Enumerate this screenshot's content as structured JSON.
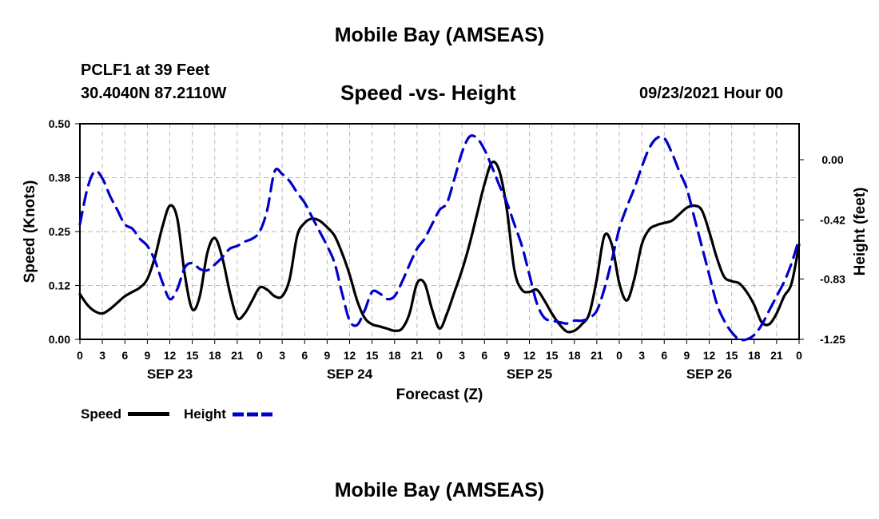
{
  "header": {
    "title": "Mobile Bay (AMSEAS)",
    "station": "PCLF1 at 39 Feet",
    "coordinates": "30.4040N  87.2110W",
    "subtitle": "Speed -vs- Height",
    "datetime": "09/23/2021 Hour 00"
  },
  "footer": {
    "title": "Mobile Bay (AMSEAS)"
  },
  "legend": {
    "speed_label": "Speed",
    "height_label": "Height"
  },
  "colors": {
    "speed": "#000000",
    "height": "#0000cc",
    "grid": "#bbbbbb"
  },
  "chart_data": {
    "type": "line",
    "title": "Speed -vs- Height",
    "xlabel": "Forecast (Z)",
    "ylabel": "Speed (Knots)",
    "y2label": "Height (feet)",
    "xlim": [
      0,
      96
    ],
    "ylim": [
      0,
      0.5
    ],
    "y2lim": [
      -1.25,
      0.25
    ],
    "x_tick_hours": [
      0,
      3,
      6,
      9,
      12,
      15,
      18,
      21,
      24,
      27,
      30,
      33,
      36,
      39,
      42,
      45,
      48,
      51,
      54,
      57,
      60,
      63,
      66,
      69,
      72,
      75,
      78,
      81,
      84,
      87,
      90,
      93,
      96
    ],
    "x_tick_labels": [
      "0",
      "3",
      "6",
      "9",
      "12",
      "15",
      "18",
      "21",
      "0",
      "3",
      "6",
      "9",
      "12",
      "15",
      "18",
      "21",
      "0",
      "3",
      "6",
      "9",
      "12",
      "15",
      "18",
      "21",
      "0",
      "3",
      "6",
      "9",
      "12",
      "15",
      "18",
      "21",
      "0"
    ],
    "date_labels": [
      {
        "hour": 12,
        "label": "SEP 23"
      },
      {
        "hour": 36,
        "label": "SEP 24"
      },
      {
        "hour": 60,
        "label": "SEP 25"
      },
      {
        "hour": 84,
        "label": "SEP 26"
      }
    ],
    "y_ticks": [
      0.0,
      0.125,
      0.25,
      0.375,
      0.5
    ],
    "y_tick_labels": [
      "0.00",
      "0.12",
      "0.25",
      "0.38",
      "0.50"
    ],
    "y2_ticks": [
      0.0,
      -0.42,
      -0.83,
      -1.25
    ],
    "y2_tick_labels": [
      "0.00",
      "-0.42",
      "-0.83",
      "-1.25"
    ],
    "series": [
      {
        "name": "Speed",
        "axis": "left",
        "style": "solid",
        "x": [
          0,
          1,
          2,
          3,
          4,
          5,
          6,
          7,
          8,
          9,
          10,
          11,
          12,
          13,
          14,
          15,
          16,
          17,
          18,
          19,
          20,
          21,
          22,
          23,
          24,
          25,
          26,
          27,
          28,
          29,
          30,
          31,
          32,
          33,
          34,
          35,
          36,
          37,
          38,
          39,
          40,
          41,
          42,
          43,
          44,
          45,
          46,
          47,
          48,
          49,
          50,
          51,
          52,
          53,
          54,
          55,
          56,
          57,
          58,
          59,
          60,
          61,
          62,
          63,
          64,
          65,
          66,
          67,
          68,
          69,
          70,
          71,
          72,
          73,
          74,
          75,
          76,
          77,
          78,
          79,
          80,
          81,
          82,
          83,
          84,
          85,
          86,
          87,
          88,
          89,
          90,
          91,
          92,
          93,
          94,
          95,
          96
        ],
        "values": [
          0.105,
          0.08,
          0.065,
          0.06,
          0.07,
          0.085,
          0.1,
          0.11,
          0.12,
          0.14,
          0.19,
          0.26,
          0.31,
          0.28,
          0.15,
          0.07,
          0.1,
          0.2,
          0.235,
          0.19,
          0.11,
          0.05,
          0.06,
          0.09,
          0.12,
          0.115,
          0.1,
          0.1,
          0.14,
          0.24,
          0.27,
          0.28,
          0.275,
          0.26,
          0.24,
          0.2,
          0.15,
          0.09,
          0.05,
          0.035,
          0.03,
          0.025,
          0.02,
          0.025,
          0.06,
          0.13,
          0.13,
          0.07,
          0.025,
          0.06,
          0.11,
          0.16,
          0.22,
          0.29,
          0.36,
          0.41,
          0.39,
          0.3,
          0.16,
          0.115,
          0.11,
          0.115,
          0.09,
          0.06,
          0.035,
          0.018,
          0.02,
          0.035,
          0.06,
          0.14,
          0.24,
          0.22,
          0.13,
          0.09,
          0.14,
          0.22,
          0.255,
          0.265,
          0.27,
          0.275,
          0.29,
          0.305,
          0.31,
          0.3,
          0.25,
          0.19,
          0.145,
          0.135,
          0.13,
          0.11,
          0.08,
          0.04,
          0.035,
          0.06,
          0.1,
          0.13,
          0.22
        ]
      },
      {
        "name": "Height",
        "axis": "right",
        "style": "dashed",
        "x": [
          0,
          1,
          2,
          3,
          4,
          5,
          6,
          7,
          8,
          9,
          10,
          11,
          12,
          13,
          14,
          15,
          16,
          17,
          18,
          19,
          20,
          21,
          22,
          23,
          24,
          25,
          26,
          27,
          28,
          29,
          30,
          31,
          32,
          33,
          34,
          35,
          36,
          37,
          38,
          39,
          40,
          41,
          42,
          43,
          44,
          45,
          46,
          47,
          48,
          49,
          50,
          51,
          52,
          53,
          54,
          55,
          56,
          57,
          58,
          59,
          60,
          61,
          62,
          63,
          64,
          65,
          66,
          67,
          68,
          69,
          70,
          71,
          72,
          73,
          74,
          75,
          76,
          77,
          78,
          79,
          80,
          81,
          82,
          83,
          84,
          85,
          86,
          87,
          88,
          89,
          90,
          91,
          92,
          93,
          94,
          95,
          96
        ],
        "values": [
          -0.45,
          -0.2,
          -0.08,
          -0.13,
          -0.25,
          -0.35,
          -0.45,
          -0.48,
          -0.55,
          -0.6,
          -0.7,
          -0.85,
          -0.97,
          -0.9,
          -0.75,
          -0.72,
          -0.76,
          -0.77,
          -0.73,
          -0.68,
          -0.62,
          -0.6,
          -0.57,
          -0.55,
          -0.5,
          -0.35,
          -0.08,
          -0.1,
          -0.15,
          -0.23,
          -0.3,
          -0.4,
          -0.5,
          -0.6,
          -0.72,
          -0.93,
          -1.12,
          -1.15,
          -1.05,
          -0.92,
          -0.93,
          -0.97,
          -0.95,
          -0.85,
          -0.73,
          -0.62,
          -0.55,
          -0.45,
          -0.35,
          -0.3,
          -0.13,
          0.05,
          0.16,
          0.15,
          0.07,
          -0.05,
          -0.18,
          -0.3,
          -0.45,
          -0.6,
          -0.8,
          -1.0,
          -1.1,
          -1.12,
          -1.13,
          -1.14,
          -1.12,
          -1.12,
          -1.1,
          -1.05,
          -0.9,
          -0.7,
          -0.48,
          -0.33,
          -0.2,
          -0.05,
          0.08,
          0.15,
          0.15,
          0.05,
          -0.08,
          -0.2,
          -0.4,
          -0.6,
          -0.8,
          -1.0,
          -1.12,
          -1.2,
          -1.25,
          -1.25,
          -1.22,
          -1.15,
          -1.05,
          -0.95,
          -0.85,
          -0.72,
          -0.55
        ]
      }
    ]
  }
}
